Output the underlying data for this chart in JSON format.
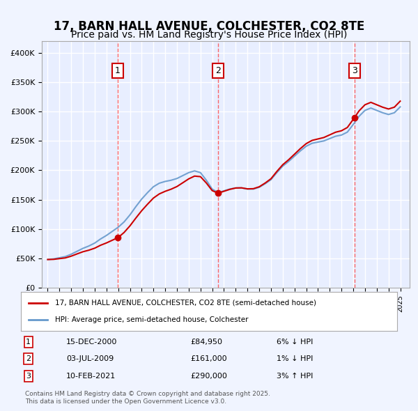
{
  "title": "17, BARN HALL AVENUE, COLCHESTER, CO2 8TE",
  "subtitle": "Price paid vs. HM Land Registry's House Price Index (HPI)",
  "legend_line1": "17, BARN HALL AVENUE, COLCHESTER, CO2 8TE (semi-detached house)",
  "legend_line2": "HPI: Average price, semi-detached house, Colchester",
  "footer1": "Contains HM Land Registry data © Crown copyright and database right 2025.",
  "footer2": "This data is licensed under the Open Government Licence v3.0.",
  "sales": [
    {
      "num": 1,
      "date_str": "15-DEC-2000",
      "date_x": 2000.96,
      "price": 84950,
      "label": "6% ↓ HPI"
    },
    {
      "num": 2,
      "date_str": "03-JUL-2009",
      "date_x": 2009.5,
      "price": 161000,
      "label": "1% ↓ HPI"
    },
    {
      "num": 3,
      "date_str": "10-FEB-2021",
      "date_x": 2021.11,
      "price": 290000,
      "label": "3% ↑ HPI"
    }
  ],
  "ylim": [
    0,
    420000
  ],
  "yticks": [
    0,
    50000,
    100000,
    150000,
    200000,
    250000,
    300000,
    350000,
    400000
  ],
  "xlim": [
    1994.5,
    2025.8
  ],
  "background_color": "#f0f4ff",
  "plot_bg": "#e8eeff",
  "grid_color": "#ffffff",
  "red_line_color": "#cc0000",
  "blue_line_color": "#6699cc",
  "vline_color": "#ff4444",
  "marker_color": "#cc0000",
  "sale_box_color": "#cc0000",
  "title_fontsize": 12,
  "subtitle_fontsize": 10
}
